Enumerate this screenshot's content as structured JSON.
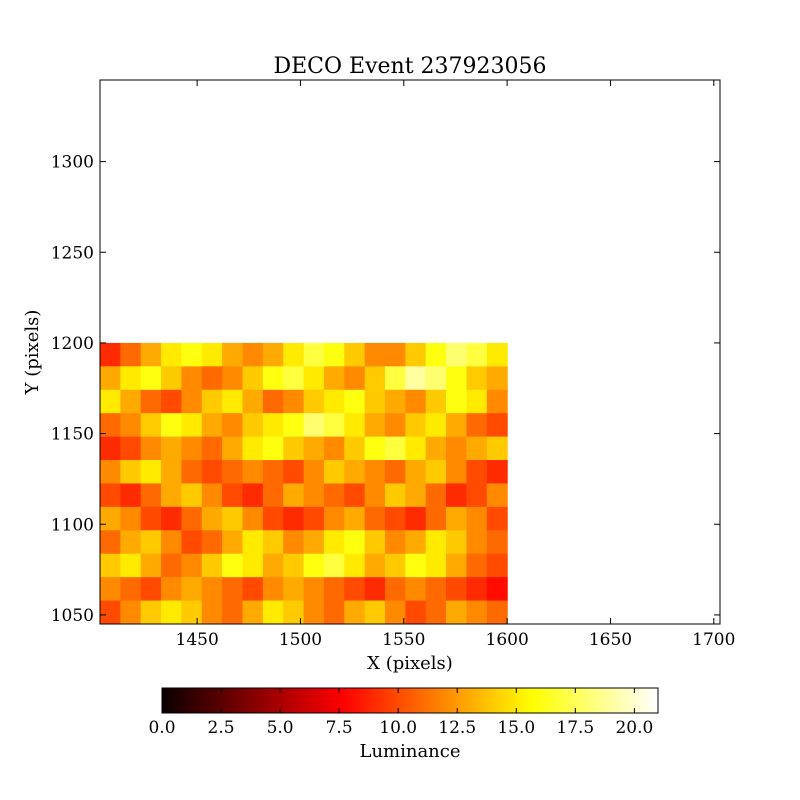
{
  "chart_data": {
    "type": "heatmap",
    "title": "DECO Event 237923056",
    "xlabel": "X (pixels)",
    "ylabel": "Y (pixels)",
    "xlim": [
      1403,
      1703
    ],
    "ylim": [
      1045,
      1345
    ],
    "xticks": [
      1450,
      1500,
      1550,
      1600,
      1650,
      1700
    ],
    "yticks": [
      1050,
      1100,
      1150,
      1200,
      1250,
      1300
    ],
    "image_extent": {
      "x": [
        1403,
        1600
      ],
      "y": [
        1045,
        1200
      ]
    },
    "colormap": "hot",
    "colorbar": {
      "label": "Luminance",
      "range": [
        0,
        21
      ],
      "ticks": [
        "0.0",
        "2.5",
        "5.0",
        "7.5",
        "10.0",
        "12.5",
        "15.0",
        "17.5",
        "20.0"
      ],
      "orientation": "horizontal",
      "placement": "bottom"
    },
    "luminance_rows": [
      [
        9,
        11,
        13,
        15,
        16,
        15,
        13,
        12,
        13,
        15,
        17,
        16,
        14,
        12,
        12,
        14,
        16,
        18,
        17,
        15
      ],
      [
        13,
        15,
        16,
        14,
        12,
        11,
        12,
        14,
        16,
        17,
        15,
        13,
        12,
        14,
        17,
        19,
        18,
        16,
        14,
        13
      ],
      [
        15,
        13,
        11,
        10,
        12,
        14,
        15,
        13,
        11,
        12,
        14,
        15,
        16,
        14,
        13,
        12,
        14,
        16,
        15,
        12
      ],
      [
        11,
        12,
        14,
        16,
        15,
        13,
        12,
        14,
        15,
        16,
        18,
        17,
        15,
        13,
        12,
        14,
        15,
        13,
        11,
        10
      ],
      [
        9,
        10,
        12,
        13,
        12,
        11,
        13,
        15,
        16,
        14,
        13,
        12,
        14,
        16,
        17,
        15,
        13,
        12,
        13,
        14
      ],
      [
        12,
        14,
        15,
        13,
        11,
        10,
        11,
        12,
        11,
        10,
        12,
        14,
        13,
        12,
        11,
        13,
        14,
        12,
        10,
        9
      ],
      [
        10,
        9,
        11,
        13,
        14,
        12,
        10,
        9,
        11,
        13,
        12,
        11,
        10,
        12,
        14,
        13,
        11,
        9,
        10,
        12
      ],
      [
        13,
        12,
        10,
        9,
        11,
        13,
        14,
        12,
        10,
        9,
        10,
        12,
        13,
        11,
        10,
        9,
        11,
        13,
        12,
        10
      ],
      [
        11,
        13,
        14,
        12,
        10,
        11,
        13,
        15,
        14,
        12,
        13,
        15,
        16,
        14,
        12,
        13,
        15,
        14,
        12,
        11
      ],
      [
        14,
        15,
        13,
        11,
        12,
        14,
        16,
        15,
        13,
        14,
        16,
        17,
        15,
        13,
        14,
        16,
        15,
        13,
        11,
        10
      ],
      [
        12,
        11,
        10,
        12,
        13,
        12,
        11,
        10,
        12,
        13,
        12,
        11,
        10,
        9,
        11,
        12,
        11,
        10,
        9,
        8
      ],
      [
        10,
        12,
        14,
        15,
        14,
        12,
        11,
        13,
        15,
        14,
        12,
        11,
        13,
        14,
        12,
        10,
        11,
        13,
        12,
        11
      ]
    ]
  }
}
